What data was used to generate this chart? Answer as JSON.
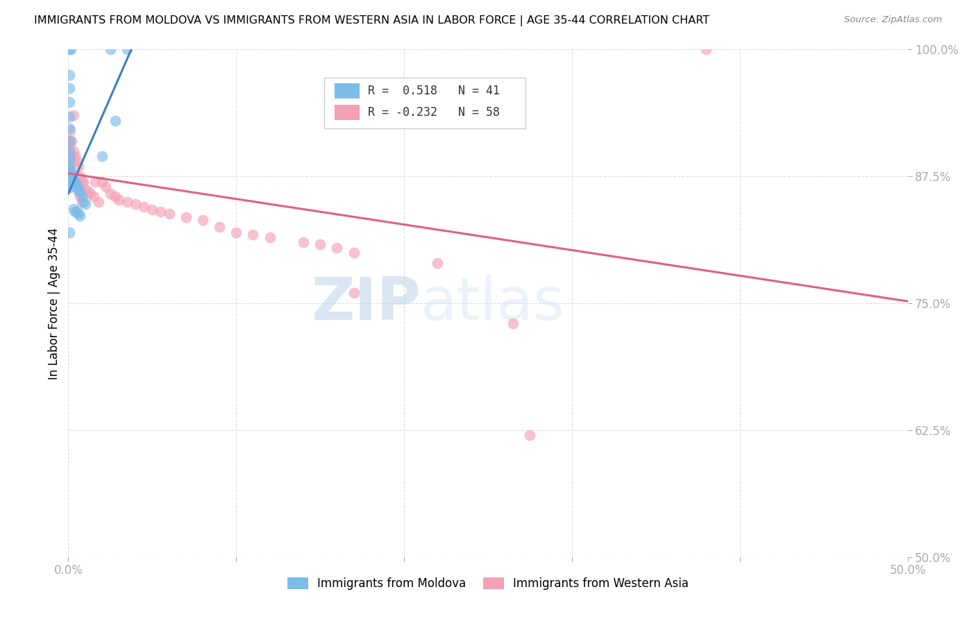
{
  "title": "IMMIGRANTS FROM MOLDOVA VS IMMIGRANTS FROM WESTERN ASIA IN LABOR FORCE | AGE 35-44 CORRELATION CHART",
  "source": "Source: ZipAtlas.com",
  "ylabel": "In Labor Force | Age 35-44",
  "xlim": [
    0.0,
    0.5
  ],
  "ylim": [
    0.5,
    1.0
  ],
  "xticks": [
    0.0,
    0.1,
    0.2,
    0.3,
    0.4,
    0.5
  ],
  "xtick_labels": [
    "0.0%",
    "",
    "",
    "",
    "",
    "50.0%"
  ],
  "ytick_labels": [
    "100.0%",
    "87.5%",
    "75.0%",
    "62.5%",
    "50.0%"
  ],
  "yticks": [
    1.0,
    0.875,
    0.75,
    0.625,
    0.5
  ],
  "moldova_R": 0.518,
  "moldova_N": 41,
  "western_asia_R": -0.232,
  "western_asia_N": 58,
  "blue_color": "#7bbce8",
  "pink_color": "#f4a0b5",
  "blue_line_color": "#3a7fc1",
  "pink_line_color": "#e06080",
  "watermark_text": "ZIPatlas",
  "watermark_color": "#c8d8ee",
  "moldova_x": [
    0.0008,
    0.0015,
    0.0008,
    0.0008,
    0.0008,
    0.0008,
    0.0008,
    0.0008,
    0.0008,
    0.0008,
    0.0008,
    0.0008,
    0.0008,
    0.0008,
    0.0008,
    0.0008,
    0.0008,
    0.0015,
    0.002,
    0.002,
    0.002,
    0.003,
    0.003,
    0.004,
    0.004,
    0.005,
    0.006,
    0.007,
    0.003,
    0.004,
    0.005,
    0.006,
    0.007,
    0.008,
    0.009,
    0.01,
    0.02,
    0.028,
    0.025,
    0.035,
    0.0008
  ],
  "moldova_y": [
    1.0,
    1.0,
    0.975,
    0.962,
    0.948,
    0.934,
    0.922,
    0.91,
    0.9,
    0.893,
    0.887,
    0.882,
    0.878,
    0.874,
    0.87,
    0.867,
    0.864,
    0.875,
    0.876,
    0.878,
    0.87,
    0.87,
    0.868,
    0.87,
    0.868,
    0.865,
    0.862,
    0.86,
    0.843,
    0.84,
    0.84,
    0.838,
    0.836,
    0.855,
    0.85,
    0.848,
    0.895,
    0.93,
    1.0,
    1.0,
    0.82
  ],
  "western_asia_x": [
    0.001,
    0.001,
    0.001,
    0.001,
    0.001,
    0.001,
    0.001,
    0.001,
    0.001,
    0.001,
    0.001,
    0.002,
    0.002,
    0.003,
    0.003,
    0.004,
    0.004,
    0.005,
    0.005,
    0.006,
    0.006,
    0.007,
    0.007,
    0.008,
    0.008,
    0.009,
    0.01,
    0.012,
    0.013,
    0.015,
    0.016,
    0.018,
    0.02,
    0.022,
    0.025,
    0.028,
    0.03,
    0.035,
    0.04,
    0.045,
    0.05,
    0.055,
    0.06,
    0.07,
    0.08,
    0.09,
    0.1,
    0.11,
    0.12,
    0.14,
    0.15,
    0.16,
    0.17,
    0.22,
    0.265,
    0.38,
    0.17,
    0.275
  ],
  "western_asia_y": [
    0.92,
    0.91,
    0.905,
    0.898,
    0.893,
    0.89,
    0.885,
    0.88,
    0.875,
    0.87,
    0.865,
    0.91,
    0.875,
    0.935,
    0.9,
    0.895,
    0.87,
    0.89,
    0.87,
    0.885,
    0.86,
    0.875,
    0.855,
    0.87,
    0.85,
    0.87,
    0.862,
    0.86,
    0.858,
    0.855,
    0.87,
    0.85,
    0.87,
    0.865,
    0.858,
    0.855,
    0.852,
    0.85,
    0.848,
    0.845,
    0.842,
    0.84,
    0.838,
    0.835,
    0.832,
    0.825,
    0.82,
    0.818,
    0.815,
    0.81,
    0.808,
    0.805,
    0.8,
    0.79,
    0.73,
    1.0,
    0.76,
    0.62
  ],
  "pink_line_x0": 0.0,
  "pink_line_y0": 0.878,
  "pink_line_x1": 0.5,
  "pink_line_y1": 0.752,
  "blue_line_x0": 0.0,
  "blue_line_y0": 0.858,
  "blue_line_x1": 0.038,
  "blue_line_y1": 1.002
}
